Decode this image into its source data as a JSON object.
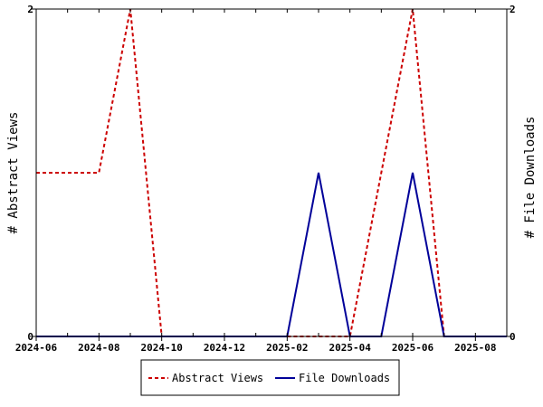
{
  "chart_data": {
    "type": "line",
    "ylabel_left": "# Abstract Views",
    "ylabel_right": "# File Downloads",
    "ylim_left": [
      0,
      2
    ],
    "ylim_right": [
      0,
      2
    ],
    "y_ticks_left": [
      "0",
      "2"
    ],
    "y_ticks_right": [
      "0",
      "2"
    ],
    "x_ticks": [
      "2024-06",
      "2024-08",
      "2024-10",
      "2024-12",
      "2025-02",
      "2025-04",
      "2025-06",
      "2025-08"
    ],
    "x": [
      "2024-06",
      "2024-07",
      "2024-08",
      "2024-09",
      "2024-10",
      "2024-11",
      "2024-12",
      "2025-01",
      "2025-02",
      "2025-03",
      "2025-04",
      "2025-05",
      "2025-06",
      "2025-07",
      "2025-08",
      "2025-09"
    ],
    "series": [
      {
        "name": "Abstract Views",
        "color": "#cc0000",
        "dash": "dashed",
        "axis": "left",
        "values": [
          1,
          1,
          1,
          2,
          0,
          0,
          0,
          0,
          0,
          0,
          0,
          1,
          2,
          0,
          0,
          0
        ]
      },
      {
        "name": "File Downloads",
        "color": "#000099",
        "dash": "solid",
        "axis": "right",
        "values": [
          0,
          0,
          0,
          0,
          0,
          0,
          0,
          0,
          0,
          1,
          0,
          0,
          1,
          0,
          0,
          0
        ]
      }
    ],
    "grid": false,
    "legend": "bottom"
  }
}
